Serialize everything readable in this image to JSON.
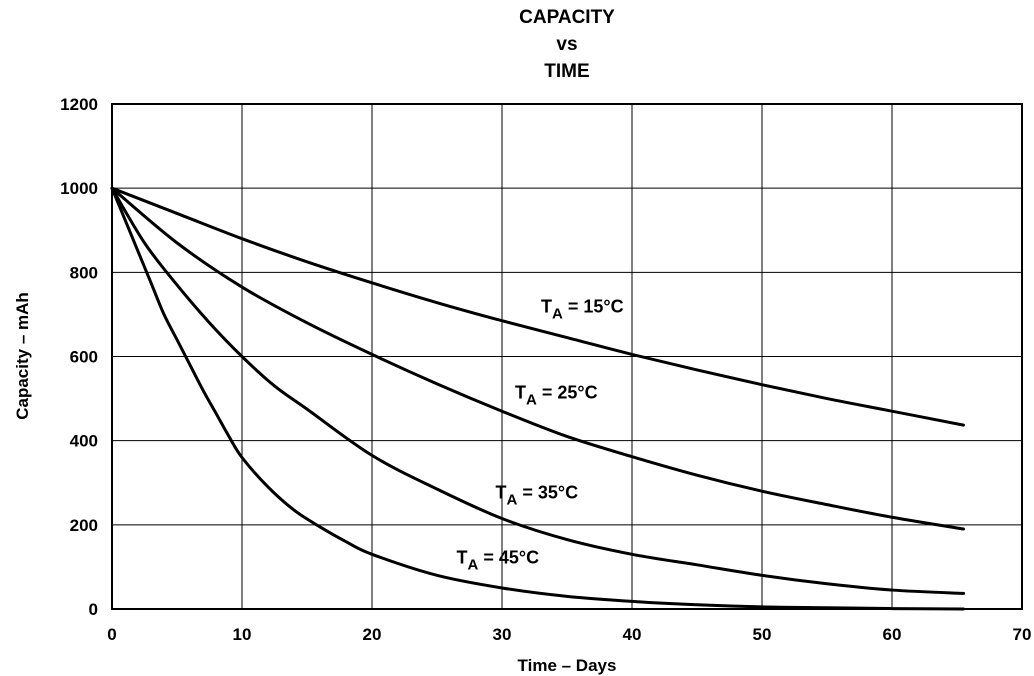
{
  "chart_data": {
    "type": "line",
    "title": [
      "CAPACITY",
      "vs",
      "TIME"
    ],
    "xlabel": "Time – Days",
    "ylabel": "Capacity – mAh",
    "xlim": [
      0,
      70
    ],
    "ylim": [
      0,
      1200
    ],
    "xticks": [
      0,
      10,
      20,
      30,
      40,
      50,
      60,
      70
    ],
    "yticks": [
      0,
      200,
      400,
      600,
      800,
      1000,
      1200
    ],
    "grid": true,
    "line_color": "#000000",
    "series": [
      {
        "label_prefix": "T",
        "label_sub": "A",
        "label_suffix": " = 15°C",
        "label_pos": [
          33,
          705
        ],
        "x": [
          0,
          5,
          10,
          15,
          20,
          25,
          30,
          35,
          40,
          45,
          50,
          55,
          60,
          65.5
        ],
        "y": [
          1000,
          940,
          880,
          825,
          775,
          728,
          685,
          645,
          605,
          568,
          533,
          500,
          470,
          437
        ]
      },
      {
        "label_prefix": "T",
        "label_sub": "A",
        "label_suffix": " = 25°C",
        "label_pos": [
          31,
          500
        ],
        "x": [
          0,
          5,
          10,
          15,
          20,
          25,
          30,
          35,
          40,
          45,
          50,
          55,
          60,
          65.5
        ],
        "y": [
          1000,
          870,
          765,
          680,
          605,
          535,
          470,
          410,
          362,
          318,
          280,
          248,
          218,
          190
        ]
      },
      {
        "label_prefix": "T",
        "label_sub": "A",
        "label_suffix": " = 35°C",
        "label_pos": [
          29.5,
          262
        ],
        "x": [
          0,
          2.5,
          5,
          7.5,
          10,
          12.5,
          15,
          20,
          25,
          30,
          35,
          40,
          45,
          50,
          55,
          60,
          65.5
        ],
        "y": [
          1000,
          870,
          770,
          680,
          600,
          530,
          475,
          365,
          285,
          215,
          165,
          130,
          105,
          80,
          60,
          45,
          37
        ]
      },
      {
        "label_prefix": "T",
        "label_sub": "A",
        "label_suffix": " = 45°C",
        "label_pos": [
          26.5,
          108
        ],
        "x": [
          0,
          1,
          2,
          3,
          4,
          5,
          6,
          7,
          8,
          9,
          10,
          12,
          14,
          16,
          18,
          20,
          25,
          30,
          35,
          40,
          45,
          50,
          55,
          60,
          65.5
        ],
        "y": [
          1000,
          925,
          850,
          775,
          700,
          640,
          580,
          520,
          465,
          410,
          360,
          290,
          235,
          195,
          160,
          130,
          80,
          50,
          30,
          18,
          10,
          5,
          3,
          1,
          0
        ]
      }
    ]
  }
}
